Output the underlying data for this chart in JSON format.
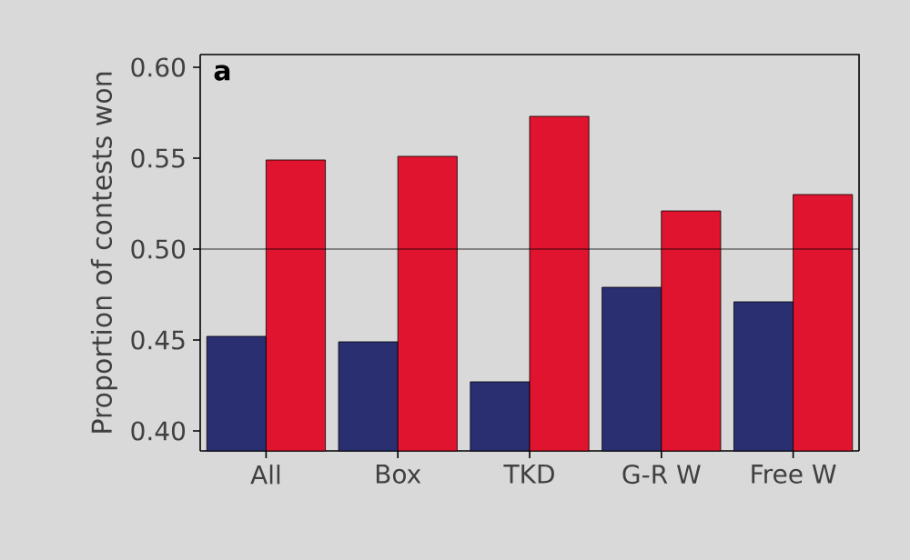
{
  "chart_data": {
    "type": "bar",
    "ylabel": "Proportion of contests won",
    "categories": [
      "All",
      "Box",
      "TKD",
      "G-R W",
      "Free W"
    ],
    "series": [
      {
        "color": "#2a2f72",
        "values": [
          0.452,
          0.449,
          0.427,
          0.479,
          0.471
        ]
      },
      {
        "color": "#e0142e",
        "values": [
          0.549,
          0.551,
          0.573,
          0.521,
          0.53
        ]
      }
    ],
    "ylim": [
      0.389,
      0.607
    ],
    "yticks": [
      {
        "value": 0.4,
        "label": "0.40"
      },
      0.45,
      {
        "value": 0.5,
        "label": "0.50"
      },
      0.55,
      {
        "value": 0.6,
        "label": "0.60"
      }
    ],
    "ref_lines": [
      {
        "axis": "y",
        "value": 0.5
      }
    ],
    "annotations": [
      "**a**"
    ],
    "grid": false
  }
}
